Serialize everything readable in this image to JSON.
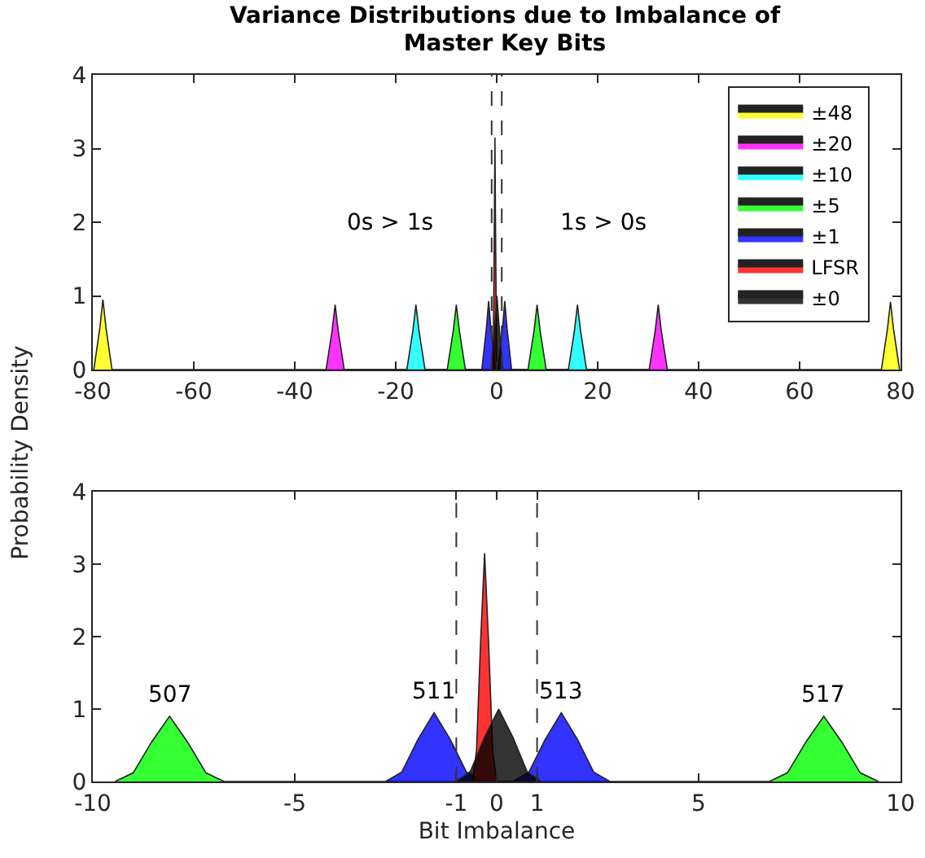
{
  "chart_data": [
    {
      "type": "area",
      "title": "Variance Distributions due to Imbalance of Master Key Bits",
      "ylabel": "Probability Density",
      "xlim": [
        -80,
        80
      ],
      "xticks": [
        -80,
        -60,
        -40,
        -20,
        0,
        20,
        40,
        60,
        80
      ],
      "ylim": [
        0,
        4
      ],
      "yticks": [
        0,
        1,
        2,
        3,
        4
      ],
      "grid": false,
      "legend": "top right",
      "marker": "none",
      "ref_lines": [
        {
          "axis": "x",
          "value": -1,
          "color": "#333333",
          "line_style": "dashed"
        },
        {
          "axis": "x",
          "value": 1,
          "color": "#333333",
          "line_style": "dashed"
        }
      ],
      "annotations": [
        "0s > 1s",
        "1s > 0s"
      ],
      "series": [
        {
          "name": "±48",
          "color": "#ffff00",
          "x": [
            -79.8,
            -78.6,
            -78,
            -77.4,
            -76.2,
            76.2,
            77.4,
            78,
            78.6,
            79.8
          ],
          "values": [
            0,
            0.57,
            0.95,
            0.57,
            0,
            0,
            0.55,
            0.92,
            0.55,
            0
          ]
        },
        {
          "name": "±20",
          "color": "#ff00ff",
          "x": [
            -33.8,
            -32.6,
            -32,
            -31.4,
            -30.2,
            30.2,
            31.4,
            32,
            32.6,
            33.8
          ],
          "values": [
            0,
            0.53,
            0.88,
            0.53,
            0,
            0,
            0.53,
            0.88,
            0.53,
            0
          ]
        },
        {
          "name": "±10",
          "color": "#00ffff",
          "x": [
            -17.8,
            -16.6,
            -16,
            -15.4,
            -14.2,
            14.2,
            15.4,
            16,
            16.6,
            17.8
          ],
          "values": [
            0,
            0.53,
            0.88,
            0.53,
            0,
            0,
            0.53,
            0.88,
            0.53,
            0
          ]
        },
        {
          "name": "±5",
          "color": "#00ff00",
          "x": [
            -9.8,
            -8.6,
            -8,
            -7.4,
            -6.2,
            6.2,
            7.4,
            8,
            8.6,
            9.8
          ],
          "values": [
            0,
            0.53,
            0.88,
            0.53,
            0,
            0,
            0.53,
            0.88,
            0.53,
            0
          ]
        },
        {
          "name": "±1",
          "color": "#0000ff",
          "x": [
            -2.95,
            -2.05,
            -1.6,
            -1.15,
            -0.25,
            0.25,
            1.15,
            1.6,
            2.05,
            2.95
          ],
          "values": [
            0,
            0.56,
            0.93,
            0.56,
            0,
            0,
            0.56,
            0.93,
            0.56,
            0
          ]
        },
        {
          "name": "LFSR",
          "color": "#ff0000",
          "x": [
            -0.71,
            -0.47,
            -0.35,
            -0.23,
            0.01
          ],
          "values": [
            0,
            1.91,
            3.15,
            1.91,
            0
          ]
        },
        {
          "name": "±0",
          "color": "#000000",
          "x": [
            -1.15,
            -0.35,
            0.05,
            0.45,
            1.25
          ],
          "values": [
            0,
            0.61,
            1,
            0.61,
            0
          ]
        }
      ]
    },
    {
      "type": "area",
      "xlabel": "Bit Imbalance",
      "xlim": [
        -10,
        10
      ],
      "xticks": [
        -10,
        -5,
        -1,
        0,
        1,
        5,
        10
      ],
      "ylim": [
        0,
        4
      ],
      "yticks": [
        0,
        1,
        2,
        3,
        4
      ],
      "grid": false,
      "legend": false,
      "marker": "none",
      "ref_lines": [
        {
          "axis": "x",
          "value": -1,
          "color": "#333333",
          "line_style": "dashed"
        },
        {
          "axis": "x",
          "value": 1,
          "color": "#333333",
          "line_style": "dashed"
        }
      ],
      "annotations": [
        {
          "text": "507",
          "x": -8.1,
          "y": 0.9
        },
        {
          "text": "511",
          "x": -1.55,
          "y": 0.95
        },
        {
          "text": "513",
          "x": 1.6,
          "y": 0.95
        },
        {
          "text": "517",
          "x": 8.1,
          "y": 0.9
        }
      ],
      "series": [
        {
          "color": "#00ff00",
          "x": [
            -9.45,
            -9,
            -8.55,
            -8.1,
            -7.65,
            -7.2,
            -6.75,
            6.75,
            7.2,
            7.65,
            8.1,
            8.55,
            9,
            9.45
          ],
          "values": [
            0,
            0.12,
            0.54,
            0.9,
            0.54,
            0.12,
            0,
            0,
            0.12,
            0.54,
            0.9,
            0.54,
            0.12,
            0
          ]
        },
        {
          "color": "#0000ff",
          "x": [
            -2.75,
            -2.35,
            -1.95,
            -1.55,
            -1.15,
            -0.75,
            -0.35,
            0.4,
            0.8,
            1.2,
            1.6,
            2,
            2.4,
            2.8
          ],
          "values": [
            0,
            0.13,
            0.58,
            0.95,
            0.58,
            0.13,
            0,
            0,
            0.13,
            0.58,
            0.95,
            0.58,
            0.13,
            0
          ]
        },
        {
          "color": "#ff0000",
          "x": [
            -0.6,
            -0.5,
            -0.4,
            -0.3,
            -0.2,
            -0.1,
            0
          ],
          "values": [
            0,
            0.43,
            1.91,
            3.15,
            1.91,
            0.43,
            0
          ]
        },
        {
          "color": "#000000",
          "x": [
            -1,
            -0.65,
            -0.3,
            0.05,
            0.4,
            0.75,
            1.1
          ],
          "values": [
            0,
            0.14,
            0.61,
            1,
            0.61,
            0.14,
            0
          ]
        }
      ]
    }
  ]
}
